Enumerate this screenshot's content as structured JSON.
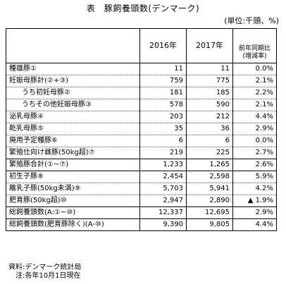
{
  "title": "表　豚飼養頭数(デンマーク)",
  "unit": "(単位:千頭、%)",
  "headers": {
    "col1": "",
    "col2016": "2016年",
    "col2017": "2017年",
    "yoy_line1": "前年同期比",
    "yoy_line2": "(増減率)"
  },
  "rows": [
    {
      "name": "種雄豚①",
      "v2016": "11",
      "v2017": "11",
      "yoy": "0.0%"
    },
    {
      "name": "妊娠母豚計(②+③)",
      "v2016": "759",
      "v2017": "775",
      "yoy": "2.1%"
    },
    {
      "name": "うち初妊母豚②",
      "v2016": "181",
      "v2017": "185",
      "yoy": "2.2%"
    },
    {
      "name": "うちその他妊娠母豚③",
      "v2016": "578",
      "v2017": "590",
      "yoy": "2.1%"
    },
    {
      "name": "泌乳母豚④",
      "v2016": "203",
      "v2017": "212",
      "yoy": "4.4%"
    },
    {
      "name": "乾乳母豚⑤",
      "v2016": "35",
      "v2017": "36",
      "yoy": "2.9%"
    },
    {
      "name": "廃用予定種豚⑥",
      "v2016": "6",
      "v2017": "6",
      "yoy": "0.0%"
    },
    {
      "name": "繁殖仕向け雌豚(50kg超)⑦",
      "v2016": "219",
      "v2017": "225",
      "yoy": "2.7%"
    },
    {
      "name": "繁殖豚合計(①~⑦)",
      "v2016": "1,233",
      "v2017": "1,265",
      "yoy": "2.6%"
    },
    {
      "name": "初生子豚⑧",
      "v2016": "2,454",
      "v2017": "2,598",
      "yoy": "5.9%"
    },
    {
      "name": "離乳子豚(50kg未満)⑨",
      "v2016": "5,703",
      "v2017": "5,941",
      "yoy": "4.2%"
    },
    {
      "name": "肥育豚(50kg超)⑩",
      "v2016": "2,947",
      "v2017": "2,890",
      "yoy": "▲ 1.9%"
    },
    {
      "name": "総飼養頭数(A:①~⑩)",
      "v2016": "12,337",
      "v2017": "12,695",
      "yoy": "2.9%"
    },
    {
      "name": "総飼養頭数(肥育豚除く)(A-⑩)",
      "v2016": "9,390",
      "v2017": "9,805",
      "yoy": "4.4%"
    }
  ],
  "notes": {
    "source": "資料:デンマーク統計局",
    "note": "注:各年10月1日現在"
  }
}
